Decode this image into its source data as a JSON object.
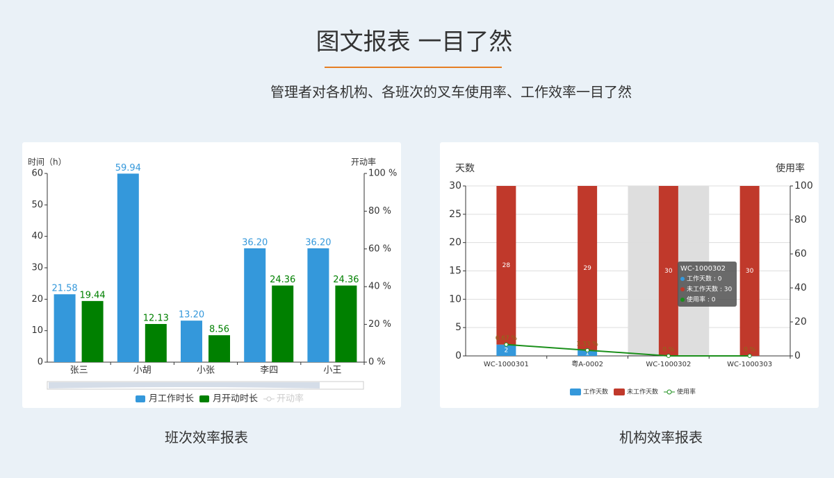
{
  "header": {
    "title": "图文报表 一目了然",
    "subtitle": "管理者对各机构、各班次的叉车使用率、工作效率一目了然"
  },
  "chart_data": [
    {
      "type": "bar",
      "caption": "班次效率报表",
      "ylabel": "时间（h）",
      "y2label": "开动率",
      "categories": [
        "张三",
        "小胡",
        "小张",
        "李四",
        "小王"
      ],
      "series": [
        {
          "name": "月工作时长",
          "color": "#3498db",
          "values": [
            21.58,
            59.94,
            13.2,
            36.2,
            36.2
          ],
          "value_labels": [
            "21.58",
            "59.94",
            "13.20",
            "36.20",
            "36.20"
          ]
        },
        {
          "name": "月开动时长",
          "color": "#008000",
          "values": [
            19.44,
            12.13,
            8.56,
            24.36,
            24.36
          ]
        },
        {
          "name": "开动率",
          "color": "#cccccc",
          "type": "line",
          "axis": "y2",
          "disabled": true,
          "values": [
            null,
            null,
            null,
            null,
            null
          ]
        }
      ],
      "ylim": [
        0,
        60
      ],
      "yticks": [
        0,
        10,
        20,
        30,
        40,
        50,
        60
      ],
      "y2lim": [
        0,
        100
      ],
      "y2ticks": [
        {
          "value": 0,
          "label": "0 %"
        },
        {
          "value": 20,
          "label": "20 %"
        },
        {
          "value": 40,
          "label": "40 %"
        },
        {
          "value": 60,
          "label": "60 %"
        },
        {
          "value": 80,
          "label": "80 %"
        },
        {
          "value": 100,
          "label": "100 %"
        }
      ],
      "grid": false,
      "zoom_slider": true
    },
    {
      "type": "bar",
      "caption": "机构效率报表",
      "ylabel": "天数",
      "y2label": "使用率",
      "stacked": true,
      "categories": [
        "WC-1000301",
        "粤A-0002",
        "WC-1000302",
        "WC-1000303"
      ],
      "series": [
        {
          "name": "工作天数",
          "color": "#3498db",
          "values": [
            2,
            1,
            0,
            0
          ]
        },
        {
          "name": "未工作天数",
          "color": "#c0392b",
          "values": [
            28,
            29,
            30,
            30
          ]
        },
        {
          "name": "使用率",
          "color": "#1a8f1a",
          "type": "line",
          "axis": "y2",
          "values": [
            6.67,
            3.33,
            0,
            0
          ],
          "value_labels": [
            "6.67 %",
            "3.33 %",
            "0 %",
            "0 %"
          ]
        }
      ],
      "ylim": [
        0,
        30
      ],
      "yticks": [
        0,
        5,
        10,
        15,
        20,
        25,
        30
      ],
      "y2lim": [
        0,
        100
      ],
      "y2ticks": [
        0,
        20,
        40,
        60,
        80,
        100
      ],
      "grid": true,
      "highlight_index": 2,
      "tooltip": {
        "title": "WC-1000302",
        "lines": [
          "工作天数 : 0",
          "未工作天数 : 30",
          "使用率 : 0"
        ]
      }
    }
  ]
}
